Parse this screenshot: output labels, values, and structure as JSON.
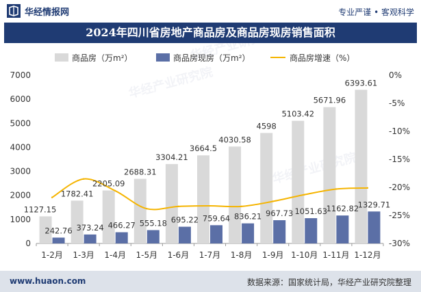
{
  "header": {
    "brand_name": "华经情报网",
    "slogan": "专业严谨 • 客观科学"
  },
  "title": "2024年四川省房地产商品房及商品房现房销售面积",
  "footer": {
    "website": "www.huaon.com",
    "source": "数据来源：国家统计局，华经产业研究院整理"
  },
  "colors": {
    "bar_total": "#d9d9d9",
    "bar_existing": "#5b6fa6",
    "line_growth": "#f5b400",
    "header_bg": "#1f3b73"
  },
  "chart_data": {
    "type": "bar",
    "categories": [
      "1-2月",
      "1-3月",
      "1-4月",
      "1-5月",
      "1-6月",
      "1-7月",
      "1-8月",
      "1-9月",
      "1-10月",
      "1-11月",
      "1-12月"
    ],
    "series": [
      {
        "name": "商品房（万m²）",
        "type": "bar",
        "axis": "left",
        "values": [
          1127.15,
          1782.41,
          2205.09,
          2688.31,
          3304.21,
          3664.5,
          4030.58,
          4598,
          5103.42,
          5671.96,
          6393.61
        ],
        "labels": [
          "1127.15",
          "1782.41",
          "2205.09",
          "2688.31",
          "3304.21",
          "3664.5",
          "4030.58",
          "4598",
          "5103.42",
          "5671.96",
          "6393.61"
        ]
      },
      {
        "name": "商品房现房（万m²）",
        "type": "bar",
        "axis": "left",
        "values": [
          242.76,
          373.24,
          466.27,
          555.18,
          695.22,
          759.64,
          836.21,
          967.73,
          1051.63,
          1162.82,
          1329.71
        ],
        "labels": [
          "242.76",
          "373.24",
          "466.27",
          "555.18",
          "695.22",
          "759.64",
          "836.21",
          "967.73",
          "1051.63",
          "1162.82",
          "1329.71"
        ]
      },
      {
        "name": "商品房增速（%）",
        "type": "line",
        "axis": "right",
        "values": [
          -21.8,
          -18.5,
          -20.6,
          -23.8,
          -23.4,
          -23.3,
          -23.4,
          -22.5,
          -21.3,
          -20.3,
          -20.1
        ]
      }
    ],
    "y_left": {
      "min": 0,
      "max": 7000,
      "ticks": [
        "0",
        "1000",
        "2000",
        "3000",
        "4000",
        "5000",
        "6000",
        "7000"
      ]
    },
    "y_right": {
      "min": -30,
      "max": 0,
      "ticks": [
        "0%",
        "-5%",
        "-10%",
        "-15%",
        "-20%",
        "-25%",
        "-30%"
      ]
    },
    "legend_position": "top",
    "grid": false,
    "watermark": "华经产业研究院"
  }
}
